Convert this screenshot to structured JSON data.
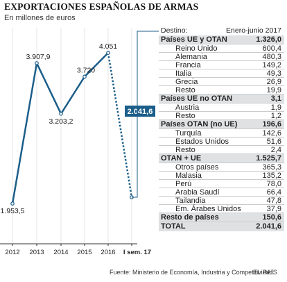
{
  "title": "EXPORTACIONES ESPAÑOLAS DE ARMAS",
  "subtitle": "En millones de euros",
  "chart_data": {
    "type": "line",
    "categories": [
      "2012",
      "2013",
      "2014",
      "2015",
      "2016",
      "I sem. 17"
    ],
    "values": [
      1953.5,
      3907.9,
      3203.2,
      3720,
      4051,
      2041.6
    ],
    "value_labels": [
      "1.953,5",
      "3.907,9",
      "3.203,2",
      "3.720",
      "4.051",
      "2.041,6"
    ],
    "dashed_last_segment": true,
    "highlight_last": true,
    "ylim": [
      1500,
      4400
    ],
    "colors": {
      "line": "#1b5e8a",
      "highlight_bg": "#1b5e8a",
      "highlight_text": "#ffffff",
      "axis": "#333333"
    }
  },
  "table": {
    "header_label": "Destino:",
    "header_period": "Enero-junio 2017",
    "groups": [
      {
        "name": "Países UE y OTAN",
        "total": "1.326,0",
        "rows": [
          {
            "label": "Reino Unido",
            "value": "600,4"
          },
          {
            "label": "Alemania",
            "value": "480,3"
          },
          {
            "label": "Francia",
            "value": "149,2"
          },
          {
            "label": "Italia",
            "value": "49,3"
          },
          {
            "label": "Grecia",
            "value": "26,9"
          },
          {
            "label": "Resto",
            "value": "19,9"
          }
        ]
      },
      {
        "name": "Países UE no OTAN",
        "total": "3,1",
        "rows": [
          {
            "label": "Austria",
            "value": "1,9"
          },
          {
            "label": "Resto",
            "value": "1,2"
          }
        ]
      },
      {
        "name": "Países OTAN (no UE)",
        "total": "196,6",
        "rows": [
          {
            "label": "Turquía",
            "value": "142,6"
          },
          {
            "label": "Estados Unidos",
            "value": "51,6"
          },
          {
            "label": "Resto",
            "value": "2,4"
          }
        ]
      },
      {
        "name": "OTAN + UE",
        "total": "1.525,7",
        "rows": [
          {
            "label": "Otros países",
            "value": "365,3"
          },
          {
            "label": "Malasia",
            "value": "135,2"
          },
          {
            "label": "Perú",
            "value": "78,0"
          },
          {
            "label": "Arabia Saudí",
            "value": "66,4"
          },
          {
            "label": "Tailandia",
            "value": "47,8"
          },
          {
            "label": "Em. Árabes Unidos",
            "value": "37,9"
          }
        ]
      },
      {
        "name": "Resto de países",
        "total": "150,6",
        "rows": []
      },
      {
        "name": "TOTAL",
        "total": "2.041,6",
        "rows": []
      }
    ]
  },
  "source": "Fuente: Ministerio de Economía, Industria y Competitividad.",
  "brand": "EL PAÍS"
}
